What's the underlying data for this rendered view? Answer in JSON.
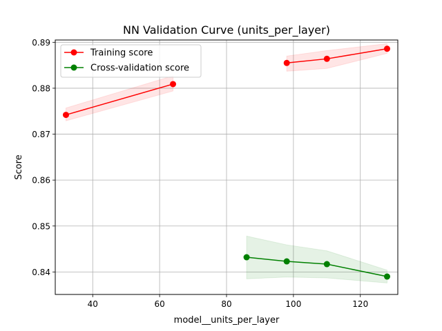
{
  "chart_data": {
    "type": "line",
    "title": "NN Validation Curve (units_per_layer)",
    "xlabel": "model__units_per_layer",
    "ylabel": "Score",
    "xlim": [
      28.8,
      131.2
    ],
    "ylim": [
      0.8351,
      0.8905
    ],
    "xticks": [
      40,
      60,
      80,
      100,
      120
    ],
    "yticks": [
      0.84,
      0.85,
      0.86,
      0.87,
      0.88,
      0.89
    ],
    "grid": true,
    "legend_position": "upper left",
    "series": [
      {
        "name": "Training score",
        "color": "#ff0000",
        "segments": [
          {
            "x": [
              32,
              64
            ],
            "y": [
              0.8742,
              0.8809
            ],
            "lower": [
              0.8729,
              0.8794
            ],
            "upper": [
              0.8757,
              0.8827
            ]
          },
          {
            "x": [
              98,
              110,
              128
            ],
            "y": [
              0.8855,
              0.8864,
              0.8886
            ],
            "lower": [
              0.8837,
              0.8843,
              0.8876
            ],
            "upper": [
              0.887,
              0.8882,
              0.8897
            ]
          }
        ]
      },
      {
        "name": "Cross-validation score",
        "color": "#008000",
        "segments": [
          {
            "x": [
              86,
              98,
              110,
              128
            ],
            "y": [
              0.8432,
              0.8423,
              0.8417,
              0.839
            ],
            "lower": [
              0.8385,
              0.8389,
              0.8387,
              0.8376
            ],
            "upper": [
              0.8478,
              0.8459,
              0.8446,
              0.8404
            ]
          }
        ]
      }
    ]
  }
}
